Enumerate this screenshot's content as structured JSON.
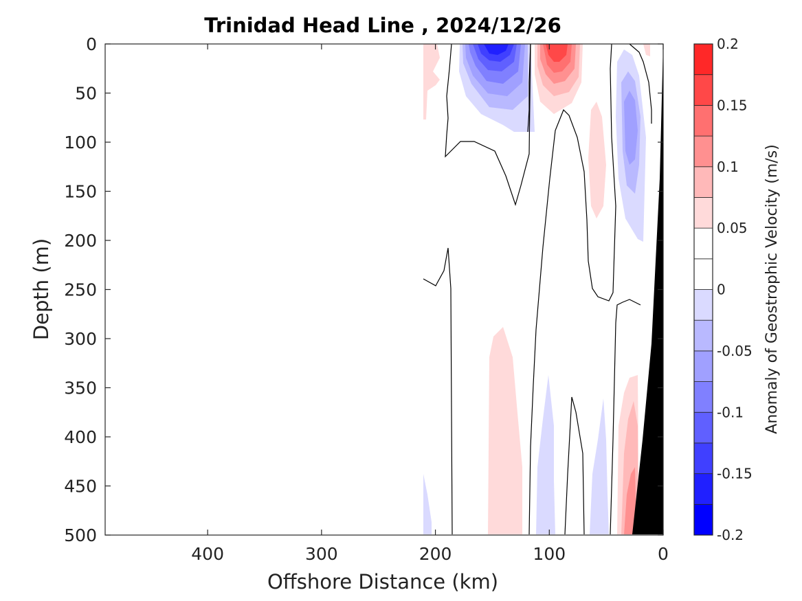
{
  "chart_data": {
    "type": "heatmap",
    "title": "Trinidad Head Line , 2024/12/26",
    "xlabel": "Offshore Distance (km)",
    "ylabel": "Depth (m)",
    "xlim": [
      490,
      0
    ],
    "ylim": [
      0,
      500
    ],
    "x_ticks": [
      400,
      300,
      200,
      100,
      0
    ],
    "x_tick_labels": [
      "400",
      "300",
      "200",
      "100",
      "0"
    ],
    "y_ticks": [
      0,
      50,
      100,
      150,
      200,
      250,
      300,
      350,
      400,
      450,
      500
    ],
    "y_tick_labels": [
      "0",
      "50",
      "100",
      "150",
      "200",
      "250",
      "300",
      "350",
      "400",
      "450",
      "500"
    ],
    "colorbar": {
      "label": "Anomaly of Geostrophic Velocity (m/s)",
      "range": [
        -0.2,
        0.2
      ],
      "levels": [
        -0.2,
        -0.175,
        -0.15,
        -0.125,
        -0.1,
        -0.075,
        -0.05,
        -0.025,
        0,
        0.025,
        0.05,
        0.075,
        0.1,
        0.125,
        0.15,
        0.175,
        0.2
      ],
      "colors": [
        "#0000ff",
        "#2020ff",
        "#4040ff",
        "#6060ff",
        "#8080ff",
        "#a0a0ff",
        "#b9b9ff",
        "#dadaff",
        "#ffffff",
        "#ffffff",
        "#ffdada",
        "#ffb9b9",
        "#ff9090",
        "#ff7070",
        "#ff4848",
        "#ff2828",
        "#ff0000"
      ],
      "tick_values": [
        0.2,
        0.15,
        0.1,
        0.05,
        0,
        -0.05,
        -0.1,
        -0.15,
        -0.2
      ],
      "tick_labels": [
        "0.2",
        "0.15",
        "0.1",
        "0.05",
        "0",
        "-0.05",
        "-0.1",
        "-0.15",
        "-0.2"
      ]
    },
    "features": [
      {
        "sign": "negative",
        "peak": -0.175,
        "x_center_km": 143,
        "depth_center_m": 15
      },
      {
        "sign": "positive",
        "peak": 0.15,
        "x_center_km": 97,
        "depth_center_m": 15
      },
      {
        "sign": "positive",
        "peak": 0.05,
        "x_center_km": 205,
        "depth_center_m": 25
      },
      {
        "sign": "negative",
        "peak": -0.075,
        "x_center_km": 30,
        "depth_center_m": 110
      },
      {
        "sign": "positive",
        "peak": 0.05,
        "x_center_km": 62,
        "depth_center_m": 130
      },
      {
        "sign": "positive",
        "peak": 0.05,
        "x_center_km": 140,
        "depth_center_m": 400
      },
      {
        "sign": "negative",
        "peak": -0.05,
        "x_center_km": 100,
        "depth_center_m": 430
      },
      {
        "sign": "negative",
        "peak": -0.05,
        "x_center_km": 50,
        "depth_center_m": 450
      },
      {
        "sign": "positive",
        "peak": 0.1,
        "x_center_km": 28,
        "depth_center_m": 450
      },
      {
        "sign": "negative",
        "peak": -0.05,
        "x_center_km": 207,
        "depth_center_m": 470
      }
    ],
    "grid": false,
    "legend": "colorbar-right",
    "bathymetry_color": "#000000"
  }
}
